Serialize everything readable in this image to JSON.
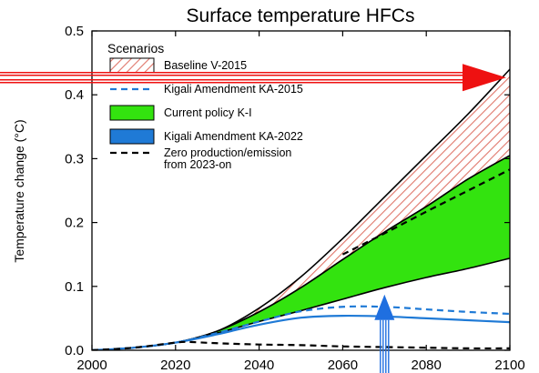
{
  "chart_data": {
    "type": "area",
    "title": "Surface temperature HFCs",
    "ylabel": "Temperature change (°C)",
    "xlabel": "",
    "xlim": [
      2000,
      2100
    ],
    "ylim": [
      0,
      0.5
    ],
    "x_ticks": [
      2000,
      2020,
      2040,
      2060,
      2080,
      2100
    ],
    "y_ticks": [
      0.0,
      0.1,
      0.2,
      0.3,
      0.4,
      0.5
    ],
    "y_tick_labels": [
      "0.0",
      "0.1",
      "0.2",
      "0.3",
      "0.4",
      "0.5"
    ],
    "grid": false,
    "legend_title": "Scenarios",
    "legend_position": "top-left",
    "series": [
      {
        "name": "Baseline V-2015",
        "style": "hatched-band",
        "color": "#e0766a",
        "x": [
          2000,
          2010,
          2020,
          2030,
          2040,
          2050,
          2060,
          2070,
          2080,
          2090,
          2100
        ],
        "upper": [
          0.0,
          0.004,
          0.012,
          0.03,
          0.066,
          0.115,
          0.175,
          0.24,
          0.305,
          0.37,
          0.44
        ],
        "lower": [
          0.0,
          0.004,
          0.012,
          0.03,
          0.06,
          0.098,
          0.142,
          0.185,
          0.225,
          0.268,
          0.305
        ]
      },
      {
        "name": "Kigali Amendment KA-2015",
        "style": "dashed-line",
        "color": "#1f7ad6",
        "x": [
          2000,
          2010,
          2020,
          2030,
          2040,
          2050,
          2060,
          2070,
          2080,
          2090,
          2100
        ],
        "y": [
          0.0,
          0.004,
          0.012,
          0.027,
          0.045,
          0.061,
          0.068,
          0.068,
          0.064,
          0.06,
          0.057
        ]
      },
      {
        "name": "Current policy K-I",
        "style": "filled-band",
        "color": "#33e30f",
        "x": [
          2000,
          2010,
          2020,
          2030,
          2040,
          2050,
          2060,
          2070,
          2080,
          2090,
          2100
        ],
        "upper": [
          0.0,
          0.004,
          0.012,
          0.03,
          0.06,
          0.098,
          0.142,
          0.185,
          0.225,
          0.268,
          0.305
        ],
        "lower": [
          0.0,
          0.004,
          0.012,
          0.027,
          0.045,
          0.062,
          0.08,
          0.098,
          0.114,
          0.128,
          0.144
        ]
      },
      {
        "name": "Kigali Amendment KA-2022",
        "style": "solid-line",
        "color": "#1f7ad6",
        "x": [
          2000,
          2010,
          2020,
          2030,
          2040,
          2050,
          2060,
          2070,
          2080,
          2090,
          2100
        ],
        "y": [
          0.0,
          0.004,
          0.012,
          0.025,
          0.04,
          0.051,
          0.054,
          0.053,
          0.05,
          0.047,
          0.044
        ]
      },
      {
        "name": "Zero production/emission from 2023-on",
        "name_lines": [
          "Zero production/emission",
          "from 2023-on"
        ],
        "style": "dashed-line",
        "color": "#000000",
        "x": [
          2000,
          2010,
          2020,
          2023,
          2030,
          2040,
          2050,
          2060,
          2070,
          2080,
          2090,
          2100
        ],
        "y": [
          0.0,
          0.004,
          0.012,
          0.013,
          0.011,
          0.009,
          0.008,
          0.006,
          0.005,
          0.004,
          0.003,
          0.003
        ]
      },
      {
        "name": "",
        "style": "dashed-line",
        "color": "#000000",
        "x": [
          2060,
          2070,
          2080,
          2090,
          2100
        ],
        "y": [
          0.15,
          0.183,
          0.217,
          0.25,
          0.283
        ]
      }
    ],
    "annotations": [
      {
        "type": "red-arrow",
        "direction": "right",
        "points_to": {
          "x": 2100,
          "y": 0.427
        }
      },
      {
        "type": "blue-arrow",
        "direction": "up",
        "points_to": {
          "x": 2070,
          "y": 0.063
        }
      }
    ]
  }
}
